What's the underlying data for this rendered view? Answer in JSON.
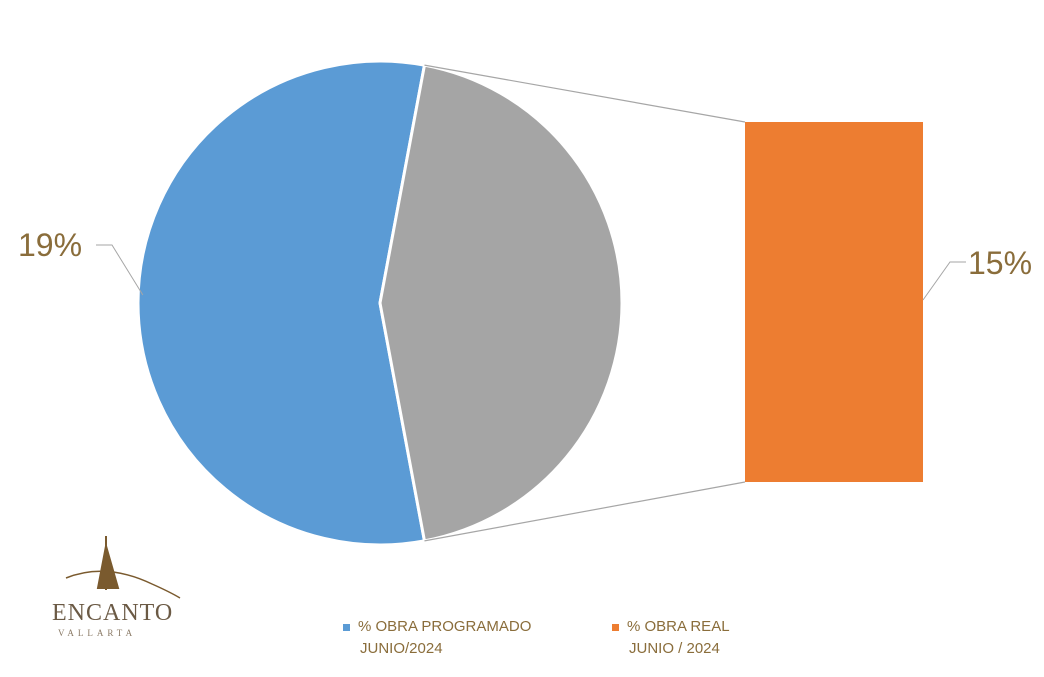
{
  "chart_data": {
    "type": "pie",
    "subtype": "pie-of-bar",
    "series": [
      {
        "name": "% OBRA PROGRAMADO JUNIO/2024",
        "value": 19,
        "label": "19%",
        "color": "#5b9bd5"
      },
      {
        "name": "% OBRA REAL JUNIO / 2024",
        "value": 15,
        "label": "15%",
        "color": "#ed7d31"
      }
    ],
    "remainder_slice": {
      "value": 15,
      "color": "#a5a5a5"
    },
    "legend": {
      "placement": "bottom",
      "items": [
        {
          "line1": "% OBRA PROGRAMADO",
          "line2": "JUNIO/2024",
          "color": "#5b9bd5"
        },
        {
          "line1": "% OBRA REAL",
          "line2": "JUNIO / 2024",
          "color": "#ed7d31"
        }
      ]
    },
    "label_color": "#8a6d3b"
  },
  "logo": {
    "name": "ENCANTO",
    "subtitle": "VALLARTA"
  }
}
